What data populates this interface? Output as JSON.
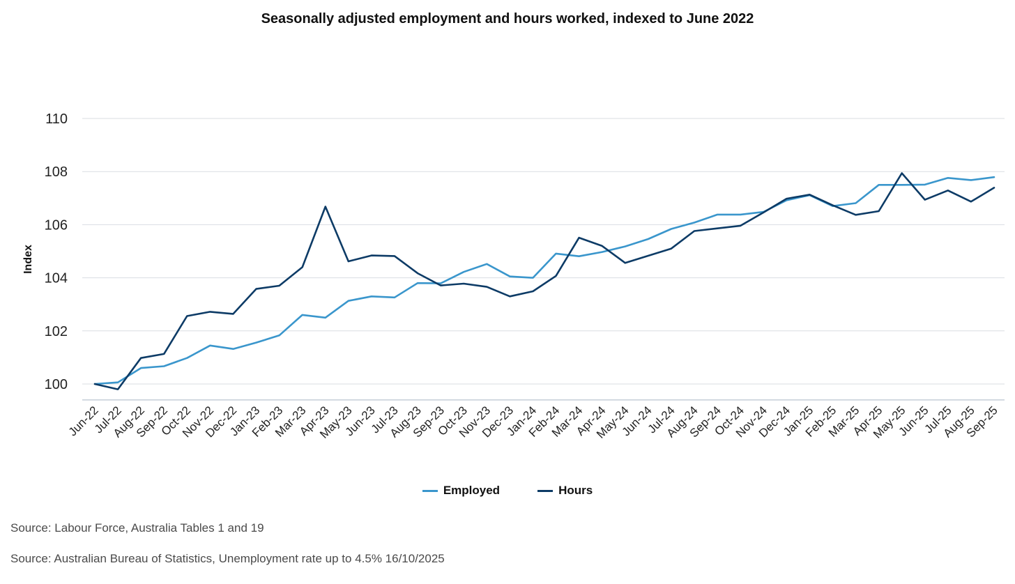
{
  "chart_data": {
    "type": "line",
    "title": "Seasonally adjusted employment and hours worked, indexed to June 2022",
    "xlabel": "",
    "ylabel": "Index",
    "ylim": [
      99.4,
      110.3
    ],
    "yticks": [
      100,
      102,
      104,
      106,
      108,
      110
    ],
    "grid": true,
    "legend_position": "bottom-center",
    "categories": [
      "Jun-22",
      "Jul-22",
      "Aug-22",
      "Sep-22",
      "Oct-22",
      "Nov-22",
      "Dec-22",
      "Jan-23",
      "Feb-23",
      "Mar-23",
      "Apr-23",
      "May-23",
      "Jun-23",
      "Jul-23",
      "Aug-23",
      "Sep-23",
      "Oct-23",
      "Nov-23",
      "Dec-23",
      "Jan-24",
      "Feb-24",
      "Mar-24",
      "Apr-24",
      "May-24",
      "Jun-24",
      "Jul-24",
      "Aug-24",
      "Sep-24",
      "Oct-24",
      "Nov-24",
      "Dec-24",
      "Jan-25",
      "Feb-25",
      "Mar-25",
      "Apr-25",
      "May-25",
      "Jun-25",
      "Jul-25",
      "Aug-25",
      "Sep-25"
    ],
    "series": [
      {
        "name": "Employed",
        "color": "#3a96cc",
        "values": [
          100.0,
          100.06,
          100.6,
          100.67,
          100.98,
          101.45,
          101.32,
          101.56,
          101.83,
          102.6,
          102.5,
          103.13,
          103.3,
          103.26,
          103.8,
          103.79,
          104.22,
          104.52,
          104.05,
          104.0,
          104.91,
          104.81,
          104.97,
          105.18,
          105.46,
          105.84,
          106.08,
          106.38,
          106.38,
          106.48,
          106.92,
          107.11,
          106.7,
          106.81,
          107.5,
          107.5,
          107.51,
          107.76,
          107.68,
          107.79
        ]
      },
      {
        "name": "Hours",
        "color": "#0d3b66",
        "values": [
          100.0,
          99.8,
          100.98,
          101.13,
          102.56,
          102.72,
          102.64,
          103.58,
          103.7,
          104.4,
          106.68,
          104.62,
          104.84,
          104.82,
          104.17,
          103.71,
          103.78,
          103.66,
          103.3,
          103.49,
          104.07,
          105.51,
          105.2,
          104.56,
          104.83,
          105.1,
          105.76,
          105.86,
          105.96,
          106.46,
          106.98,
          107.13,
          106.73,
          106.37,
          106.51,
          107.94,
          106.94,
          107.29,
          106.87,
          107.39
        ]
      }
    ]
  },
  "sources": [
    "Source: Labour Force, Australia Tables 1 and 19",
    "Source: Australian Bureau of Statistics, Unemployment rate up to 4.5% 16/10/2025"
  ]
}
